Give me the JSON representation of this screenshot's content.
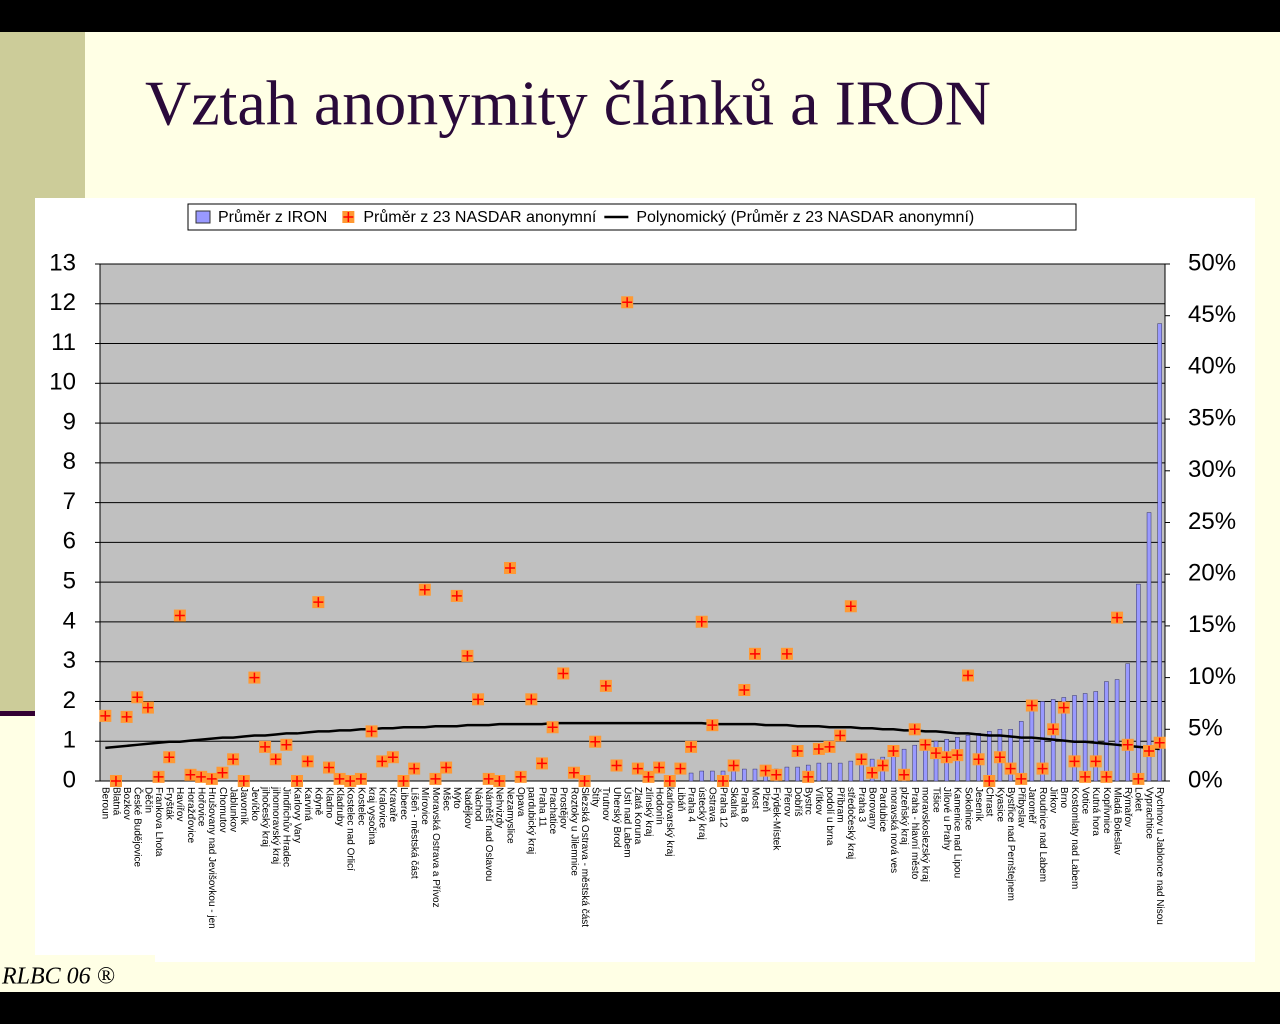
{
  "slide": {
    "title": "Vztah anonymity článků a IRON",
    "footer": "RLBC 06 ®"
  },
  "chart_data": {
    "type": "combo",
    "categories": [
      "Beroun",
      "Blatná",
      "Bozkov",
      "České Budějovice",
      "Děčín",
      "Frankova Lhota",
      "Fryšták",
      "Havířov",
      "Horažďovice",
      "Hořovice",
      "Hrušovany nad Jevišovkou - jen",
      "Chomutov",
      "Jablunkov",
      "Javorník",
      "Jevíčko",
      "jihočeský kraj",
      "jihomoravský kraj",
      "Jindřichův Hradec",
      "Karlovy Vary",
      "Karviná",
      "Kdyně",
      "Kladno",
      "Kladruby",
      "Kostelec nad Orlicí",
      "Kostelec",
      "kraj vysočina",
      "Kralovice",
      "Kravaře",
      "Liberec",
      "Líšeň - městská část",
      "Mírovice",
      "Moravská Ostrava a Přívoz",
      "Mšec",
      "Mýto",
      "Nadějkov",
      "Náchod",
      "Náměšť nad Oslavou",
      "Nehvizdy",
      "Nezamyslice",
      "Opava",
      "pardubický kraj",
      "Praha 11",
      "Prachatice",
      "Prostějov",
      "Roztoky u Jilemnice",
      "Slezská Ostrava - městská část",
      "Štíty",
      "Trutnov",
      "Uherský Brod",
      "Ústí nad Labem",
      "Zlatá Koruna",
      "zlínský kraj",
      "Hodonín",
      "karlovarský kraj",
      "Libáň",
      "Praha 4",
      "ústecký kraj",
      "Ostrava",
      "Praha 12",
      "Skalná",
      "Praha 8",
      "Most",
      "Plzeň",
      "Frýdek-Místek",
      "Přerov",
      "Dobříš",
      "Bystrc",
      "Vítkov",
      "podolí u brna",
      "Příbram",
      "středočeský kraj",
      "Praha 3",
      "Borovany",
      "Pardubice",
      "moravská nová ves",
      "plzeňský kraj",
      "Praha - hlavní město",
      "moravskoslezský kraj",
      "Tišice",
      "Jílové u Prahy",
      "Kamenice nad Lipou",
      "Sokolnice",
      "Jeseník",
      "Chrast",
      "Kyasice",
      "Bystřice nad Pernštejnem",
      "Přibyslav",
      "Jaroměř",
      "Roudnice nad Labem",
      "Jirkov",
      "Brno",
      "Kostomlaty nad Labem",
      "Votice",
      "Kutná hora",
      "Kopřivnice",
      "Mladá Boleslav",
      "Rýmařov",
      "Loket",
      "Vyprachtice",
      "Rychnov u Jablonce nad Nisou"
    ],
    "series": [
      {
        "name": "Průměr z IRON",
        "type": "bar",
        "color": "#9999ff",
        "axis": "y",
        "values": [
          0,
          0,
          0,
          0,
          0,
          0,
          0,
          0,
          0,
          0,
          0,
          0,
          0,
          0,
          0,
          0,
          0,
          0,
          0,
          0,
          0,
          0,
          0,
          0,
          0,
          0,
          0,
          0,
          0,
          0,
          0,
          0,
          0,
          0,
          0,
          0,
          0,
          0,
          0,
          0,
          0,
          0,
          0,
          0,
          0,
          0,
          0,
          0,
          0,
          0,
          0,
          0,
          0,
          0,
          0,
          0.2,
          0.25,
          0.25,
          0.25,
          0.25,
          0.3,
          0.3,
          0.3,
          0.3,
          0.35,
          0.35,
          0.4,
          0.45,
          0.45,
          0.45,
          0.5,
          0.5,
          0.55,
          0.6,
          0.7,
          0.8,
          0.9,
          0.95,
          1.0,
          1.05,
          1.1,
          1.15,
          1.2,
          1.25,
          1.3,
          1.3,
          1.5,
          1.8,
          2.0,
          2.05,
          2.1,
          2.15,
          2.2,
          2.25,
          2.5,
          2.55,
          2.95,
          4.95,
          6.75,
          11.5
        ]
      },
      {
        "name": "Průměr z 23 NASDAR anonymní",
        "type": "marker",
        "color": "#ff9933",
        "axis": "y2",
        "values": [
          6.3,
          0,
          6.2,
          8.1,
          7.1,
          0.4,
          2.3,
          16,
          0.6,
          0.4,
          0.2,
          0.8,
          2.1,
          0,
          10,
          3.3,
          2.1,
          3.5,
          0,
          1.9,
          17.3,
          1.3,
          0.2,
          0,
          0.2,
          4.8,
          1.9,
          2.3,
          0,
          1.2,
          18.5,
          0.2,
          1.3,
          17.9,
          12.1,
          7.9,
          0.2,
          0,
          20.6,
          0.4,
          7.9,
          1.7,
          5.2,
          10.4,
          0.8,
          0,
          3.8,
          9.2,
          1.5,
          46.3,
          1.2,
          0.4,
          1.3,
          0,
          1.2,
          3.3,
          15.4,
          5.4,
          0,
          1.5,
          8.8,
          12.3,
          1,
          0.6,
          12.3,
          2.9,
          0.4,
          3.1,
          3.3,
          4.4,
          16.9,
          2.1,
          0.8,
          1.5,
          2.9,
          0.6,
          5,
          3.5,
          2.7,
          2.3,
          2.5,
          10.2,
          2.1,
          0,
          2.3,
          1.2,
          0.2,
          7.3,
          1.2,
          5,
          7.1,
          1.9,
          0.4,
          1.9,
          0.4,
          15.8,
          3.5,
          0.2,
          2.9,
          3.7
        ]
      },
      {
        "name": "Polynomický (Průměr z 23 NASDAR anonymní)",
        "type": "line",
        "color": "#000000",
        "axis": "y2",
        "values": [
          3.2,
          3.3,
          3.4,
          3.5,
          3.6,
          3.7,
          3.8,
          3.8,
          3.9,
          4.0,
          4.1,
          4.2,
          4.2,
          4.3,
          4.4,
          4.4,
          4.5,
          4.6,
          4.6,
          4.7,
          4.8,
          4.8,
          4.9,
          4.9,
          5.0,
          5.0,
          5.1,
          5.1,
          5.2,
          5.2,
          5.2,
          5.3,
          5.3,
          5.3,
          5.4,
          5.4,
          5.4,
          5.5,
          5.5,
          5.5,
          5.5,
          5.5,
          5.6,
          5.6,
          5.6,
          5.6,
          5.6,
          5.6,
          5.6,
          5.6,
          5.6,
          5.6,
          5.6,
          5.6,
          5.6,
          5.6,
          5.6,
          5.5,
          5.5,
          5.5,
          5.5,
          5.5,
          5.4,
          5.4,
          5.4,
          5.3,
          5.3,
          5.3,
          5.2,
          5.2,
          5.2,
          5.1,
          5.1,
          5.0,
          5.0,
          4.9,
          4.9,
          4.8,
          4.8,
          4.7,
          4.6,
          4.6,
          4.5,
          4.4,
          4.4,
          4.3,
          4.2,
          4.2,
          4.1,
          4.0,
          3.9,
          3.8,
          3.8,
          3.7,
          3.6,
          3.5,
          3.4,
          3.3,
          3.2,
          3.1
        ]
      }
    ],
    "ylim": [
      0,
      13
    ],
    "yticks": [
      0,
      1,
      2,
      3,
      4,
      5,
      6,
      7,
      8,
      9,
      10,
      11,
      12,
      13
    ],
    "y2lim": [
      0,
      50
    ],
    "y2ticks": [
      {
        "value": 0,
        "label": "0%"
      },
      {
        "value": 5,
        "label": "5%"
      },
      {
        "value": 10,
        "label": "10%"
      },
      {
        "value": 15,
        "label": "15%"
      },
      {
        "value": 20,
        "label": "20%"
      },
      {
        "value": 25,
        "label": "25%"
      },
      {
        "value": 30,
        "label": "30%"
      },
      {
        "value": 35,
        "label": "35%"
      },
      {
        "value": 40,
        "label": "40%"
      },
      {
        "value": 45,
        "label": "45%"
      },
      {
        "value": 50,
        "label": "50%"
      }
    ],
    "grid": true,
    "legend": "top"
  }
}
